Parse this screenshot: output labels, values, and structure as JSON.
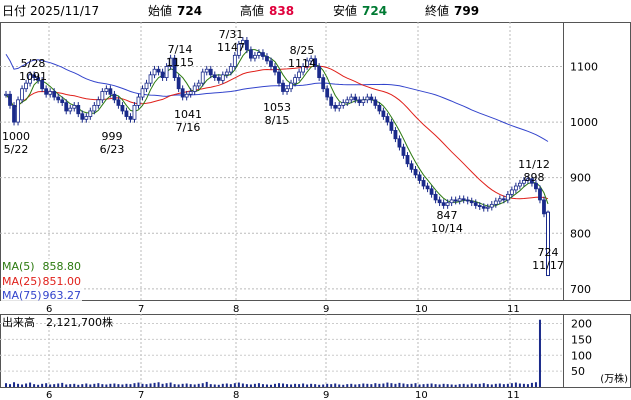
{
  "header": {
    "date_label": "日付",
    "date": "2025/11/17",
    "open_label": "始値",
    "open": "724",
    "high_label": "高値",
    "high": "838",
    "low_label": "安値",
    "low": "724",
    "close_label": "終値",
    "close": "799"
  },
  "colors": {
    "high": "#e0003c",
    "low": "#007a33",
    "ma5": "#2c7a10",
    "ma25": "#e0201a",
    "ma75": "#3344cc",
    "candle": "#1a2a8a",
    "volume": "#1a2a8a"
  },
  "legend": {
    "ma5": "MA(5)",
    "ma5_value": "858.80",
    "ma25": "MA(25)",
    "ma25_value": "851.00",
    "ma75": "MA(75)",
    "ma75_value": "963.27"
  },
  "volume_panel": {
    "label": "出来高",
    "value": "2,121,700株",
    "unit": "(万株)",
    "ticks": [
      "200",
      "150",
      "100",
      "50"
    ]
  },
  "chart_data": {
    "type": "candlestick",
    "x_tick_labels": [
      "6",
      "7",
      "8",
      "9",
      "10",
      "11"
    ],
    "y_tick_labels": [
      "1100",
      "1000",
      "900",
      "800",
      "700"
    ],
    "ylim": [
      680,
      1180
    ],
    "annotations": [
      {
        "date": "5/28",
        "value": "1091",
        "position": "above"
      },
      {
        "date": "5/22",
        "value": "1000",
        "position": "below"
      },
      {
        "date": "6/23",
        "value": "999",
        "position": "below"
      },
      {
        "date": "7/14",
        "value": "1115",
        "position": "above"
      },
      {
        "date": "7/16",
        "value": "1041",
        "position": "below"
      },
      {
        "date": "7/31",
        "value": "1147",
        "position": "above"
      },
      {
        "date": "8/15",
        "value": "1053",
        "position": "below"
      },
      {
        "date": "8/25",
        "value": "1114",
        "position": "above"
      },
      {
        "date": "10/14",
        "value": "847",
        "position": "below"
      },
      {
        "date": "11/12",
        "value": "898",
        "position": "above"
      },
      {
        "date": "11/17",
        "value": "724",
        "position": "below"
      }
    ],
    "close_series": [
      1050,
      1030,
      1000,
      1040,
      1060,
      1070,
      1085,
      1080,
      1075,
      1060,
      1050,
      1055,
      1045,
      1040,
      1035,
      1020,
      1025,
      1030,
      1015,
      1005,
      1010,
      1020,
      1030,
      1040,
      1055,
      1060,
      1050,
      1040,
      1030,
      1020,
      1010,
      1005,
      1030,
      1045,
      1060,
      1070,
      1085,
      1095,
      1090,
      1080,
      1100,
      1115,
      1080,
      1060,
      1045,
      1050,
      1055,
      1065,
      1070,
      1090,
      1095,
      1085,
      1080,
      1075,
      1085,
      1090,
      1100,
      1120,
      1140,
      1147,
      1130,
      1115,
      1120,
      1125,
      1118,
      1110,
      1100,
      1090,
      1070,
      1055,
      1060,
      1070,
      1080,
      1090,
      1100,
      1110,
      1114,
      1100,
      1080,
      1060,
      1045,
      1030,
      1025,
      1030,
      1035,
      1040,
      1045,
      1040,
      1035,
      1040,
      1045,
      1040,
      1030,
      1020,
      1010,
      1000,
      985,
      970,
      955,
      940,
      925,
      915,
      905,
      895,
      885,
      880,
      870,
      860,
      855,
      850,
      855,
      860,
      858,
      862,
      860,
      858,
      855,
      850,
      848,
      845,
      847,
      852,
      858,
      862,
      860,
      870,
      878,
      885,
      890,
      895,
      898,
      890,
      880,
      860,
      835,
      799
    ],
    "volume_series": [
      12,
      9,
      15,
      10,
      8,
      11,
      14,
      9,
      7,
      10,
      12,
      8,
      9,
      11,
      13,
      8,
      9,
      10,
      7,
      9,
      11,
      8,
      10,
      12,
      9,
      8,
      10,
      11,
      9,
      8,
      10,
      9,
      12,
      14,
      10,
      9,
      11,
      13,
      15,
      10,
      12,
      14,
      9,
      8,
      10,
      11,
      9,
      8,
      10,
      12,
      16,
      9,
      8,
      7,
      10,
      11,
      9,
      12,
      14,
      11,
      9,
      8,
      10,
      12,
      9,
      8,
      7,
      10,
      12,
      11,
      9,
      8,
      10,
      9,
      11,
      8,
      10,
      9,
      7,
      8,
      10,
      9,
      11,
      8,
      7,
      9,
      10,
      8,
      9,
      11,
      10,
      9,
      12,
      10,
      11,
      14,
      12,
      10,
      13,
      11,
      9,
      10,
      12,
      8,
      9,
      10,
      11,
      9,
      8,
      10,
      9,
      8,
      7,
      9,
      10,
      8,
      11,
      9,
      10,
      12,
      9,
      8,
      10,
      11,
      9,
      10,
      12,
      14,
      11,
      10,
      9,
      13,
      15,
      212
    ]
  }
}
